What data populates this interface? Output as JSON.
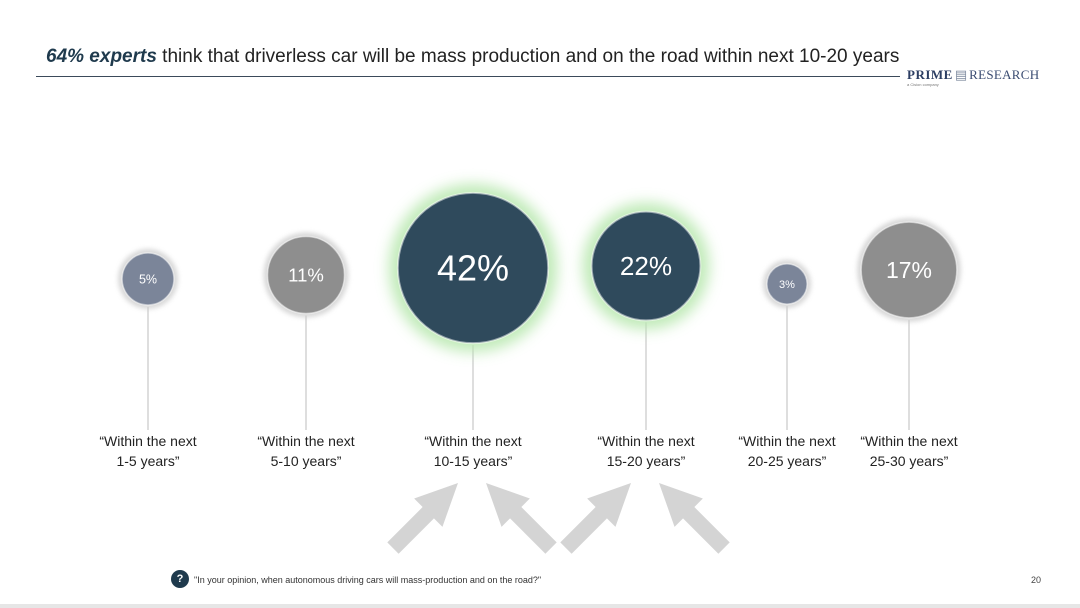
{
  "header": {
    "title_strong": "64% experts",
    "title_rest": " think that driverless car will be mass production and on the road within next 10-20 years"
  },
  "logo": {
    "prime": "PRIME",
    "research": "RESEARCH",
    "tagline": "a Cision company"
  },
  "colors": {
    "dark_bubble": "#2f4a5c",
    "grey_bubble": "#8e8e8e",
    "small_bubble": "#7b8599",
    "highlight_glow": "#b9e8b0",
    "arrow": "#d4d4d4"
  },
  "chart_data": {
    "type": "bubble",
    "title": "64% experts think that driverless car will be mass production and on the road within next 10-20 years",
    "categories": [
      [
        "“Within the next",
        "1-5 years”"
      ],
      [
        "“Within the next",
        "5-10 years”"
      ],
      [
        "“Within the next",
        "10-15 years”"
      ],
      [
        "“Within the next",
        "15-20 years”"
      ],
      [
        "“Within the next",
        "20-25 years”"
      ],
      [
        "“Within the next",
        "25-30 years”"
      ]
    ],
    "values": [
      5,
      11,
      42,
      22,
      3,
      17
    ],
    "value_labels": [
      "5%",
      "11%",
      "42%",
      "22%",
      "3%",
      "17%"
    ],
    "highlighted": [
      false,
      false,
      true,
      true,
      false,
      false
    ]
  },
  "footer": {
    "question_icon": "?",
    "question": "\"In your opinion, when autonomous driving cars will mass-production and on the road?\"",
    "page_number": "20"
  }
}
